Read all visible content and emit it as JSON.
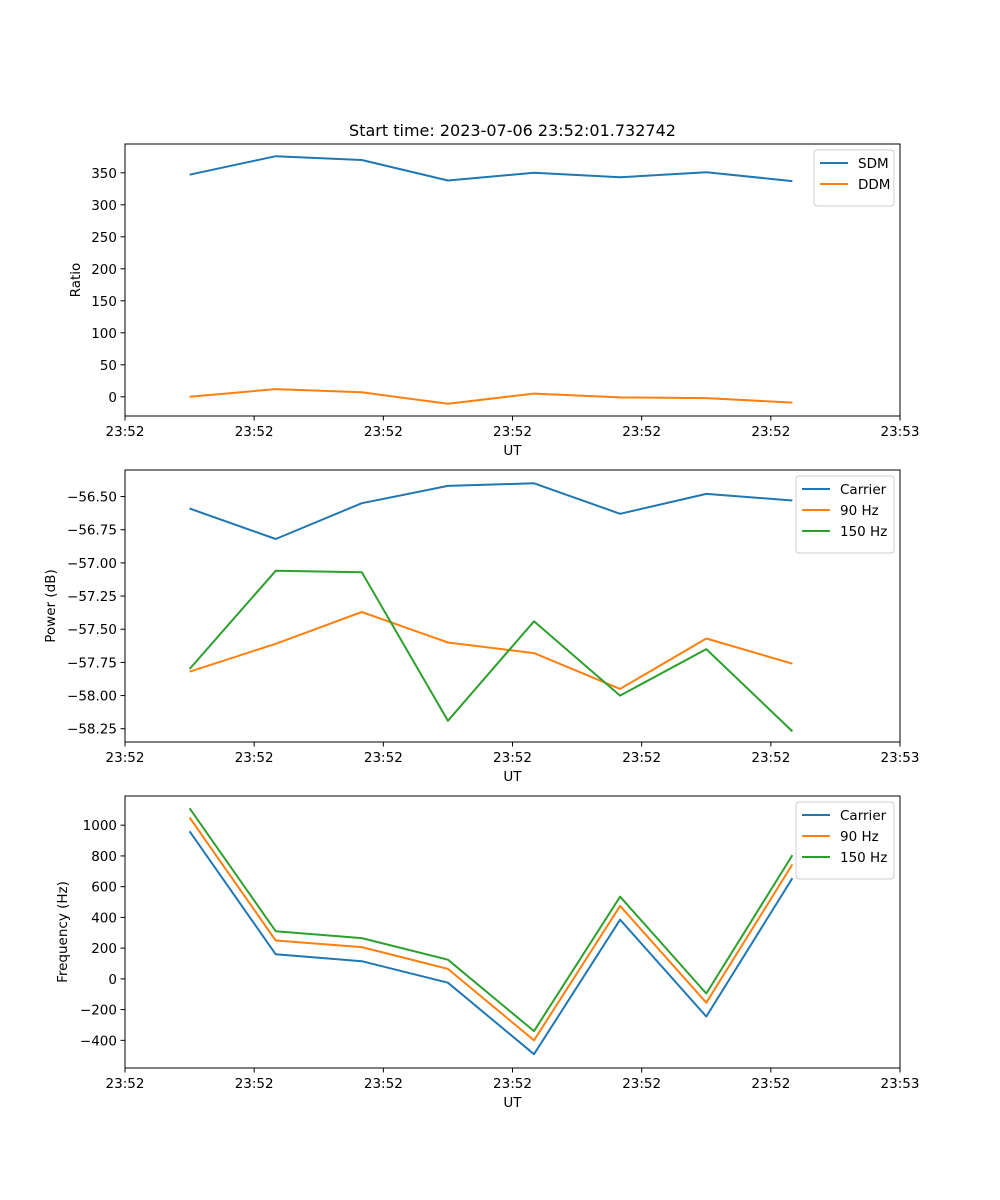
{
  "figure_title": "Start time: 2023-07-06 23:52:01.732742",
  "chart_data": [
    {
      "type": "line",
      "title": "Start time: 2023-07-06 23:52:01.732742",
      "xlabel": "UT",
      "ylabel": "Ratio",
      "xlim": [
        0,
        9
      ],
      "ylim": [
        -30,
        395
      ],
      "x": [
        0.75,
        1.75,
        2.75,
        3.75,
        4.75,
        5.75,
        6.75,
        7.75
      ],
      "xticks": [
        0,
        1.5,
        3,
        4.5,
        6,
        7.5,
        9
      ],
      "xtick_labels": [
        "23:52",
        "23:52",
        "23:52",
        "23:52",
        "23:52",
        "23:52",
        "23:53"
      ],
      "yticks": [
        0,
        50,
        100,
        150,
        200,
        250,
        300,
        350
      ],
      "ytick_labels": [
        "0",
        "50",
        "100",
        "150",
        "200",
        "250",
        "300",
        "350"
      ],
      "grid": false,
      "legend": "top-right",
      "series": [
        {
          "name": "SDM",
          "color": "#1f77b4",
          "values": [
            347,
            376,
            370,
            338,
            350,
            343,
            351,
            337
          ]
        },
        {
          "name": "DDM",
          "color": "#ff7f0e",
          "values": [
            0,
            12,
            7,
            -11,
            5,
            -1,
            -2,
            -9
          ]
        }
      ]
    },
    {
      "type": "line",
      "title": "",
      "xlabel": "UT",
      "ylabel": "Power (dB)",
      "xlim": [
        0,
        9
      ],
      "ylim": [
        -58.35,
        -56.3
      ],
      "x": [
        0.75,
        1.75,
        2.75,
        3.75,
        4.75,
        5.75,
        6.75,
        7.75
      ],
      "xticks": [
        0,
        1.5,
        3,
        4.5,
        6,
        7.5,
        9
      ],
      "xtick_labels": [
        "23:52",
        "23:52",
        "23:52",
        "23:52",
        "23:52",
        "23:52",
        "23:53"
      ],
      "yticks": [
        -58.25,
        -58.0,
        -57.75,
        -57.5,
        -57.25,
        -57.0,
        -56.75,
        -56.5
      ],
      "ytick_labels": [
        "−58.25",
        "−58.00",
        "−57.75",
        "−57.50",
        "−57.25",
        "−57.00",
        "−56.75",
        "−56.50"
      ],
      "grid": false,
      "legend": "top-right",
      "series": [
        {
          "name": "Carrier",
          "color": "#1f77b4",
          "values": [
            -56.59,
            -56.82,
            -56.55,
            -56.42,
            -56.4,
            -56.63,
            -56.48,
            -56.53
          ]
        },
        {
          "name": "90 Hz",
          "color": "#ff7f0e",
          "values": [
            -57.82,
            -57.61,
            -57.37,
            -57.6,
            -57.68,
            -57.95,
            -57.57,
            -57.76
          ]
        },
        {
          "name": "150 Hz",
          "color": "#2ca02c",
          "values": [
            -57.8,
            -57.06,
            -57.07,
            -58.19,
            -57.44,
            -58.0,
            -57.65,
            -58.27
          ]
        }
      ]
    },
    {
      "type": "line",
      "title": "",
      "xlabel": "UT",
      "ylabel": "Frequency (Hz)",
      "xlim": [
        0,
        9
      ],
      "ylim": [
        -580,
        1190
      ],
      "x": [
        0.75,
        1.75,
        2.75,
        3.75,
        4.75,
        5.75,
        6.75,
        7.75
      ],
      "xticks": [
        0,
        1.5,
        3,
        4.5,
        6,
        7.5,
        9
      ],
      "xtick_labels": [
        "23:52",
        "23:52",
        "23:52",
        "23:52",
        "23:52",
        "23:52",
        "23:53"
      ],
      "yticks": [
        -400,
        -200,
        0,
        200,
        400,
        600,
        800,
        1000
      ],
      "ytick_labels": [
        "−400",
        "−200",
        "0",
        "200",
        "400",
        "600",
        "800",
        "1000"
      ],
      "grid": false,
      "legend": "top-right",
      "series": [
        {
          "name": "Carrier",
          "color": "#1f77b4",
          "values": [
            960,
            160,
            115,
            -25,
            -490,
            385,
            -245,
            655
          ]
        },
        {
          "name": "90 Hz",
          "color": "#ff7f0e",
          "values": [
            1050,
            250,
            207,
            65,
            -400,
            475,
            -155,
            745
          ]
        },
        {
          "name": "150 Hz",
          "color": "#2ca02c",
          "values": [
            1110,
            310,
            265,
            125,
            -340,
            535,
            -95,
            805
          ]
        }
      ]
    }
  ]
}
